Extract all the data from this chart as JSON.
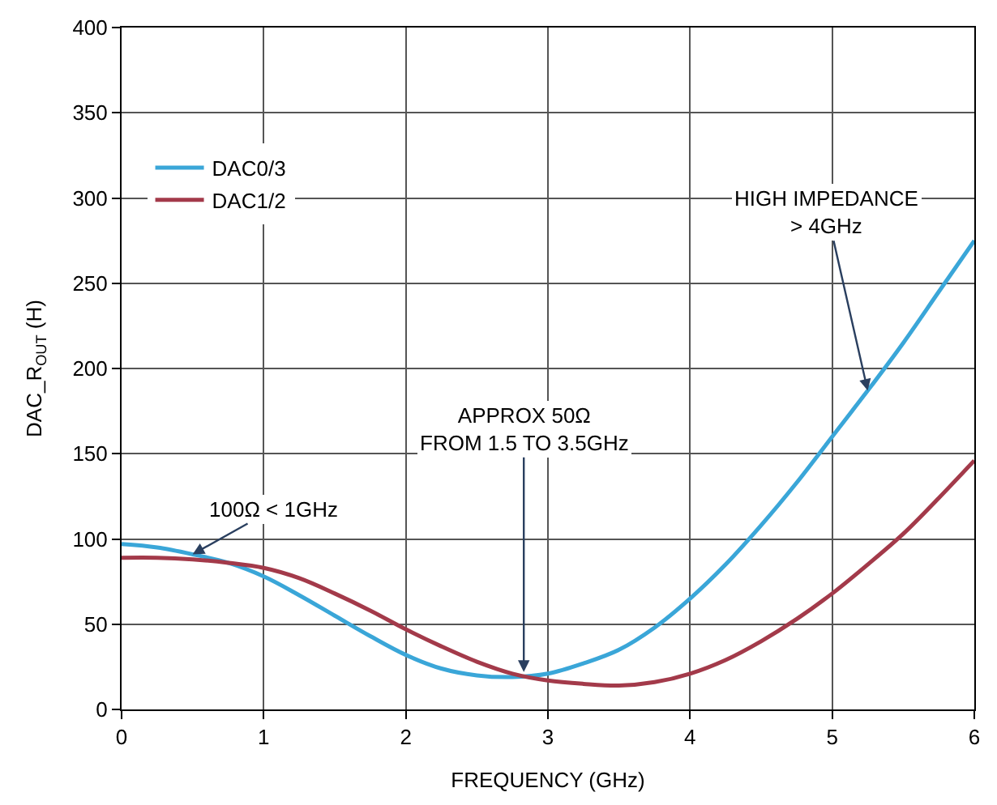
{
  "chart_data": {
    "type": "line",
    "xlabel": "FREQUENCY (GHz)",
    "ylabel": "DAC_R$_{OUT}$ (H)",
    "x": [
      0,
      0.25,
      0.5,
      0.75,
      1,
      1.25,
      1.5,
      1.75,
      2,
      2.25,
      2.5,
      2.75,
      3,
      3.25,
      3.5,
      3.75,
      4,
      4.25,
      4.5,
      4.75,
      5,
      5.25,
      5.5,
      5.75,
      6
    ],
    "series": [
      {
        "name": "DAC0/3",
        "color": "#3aa6d8",
        "values": [
          97,
          95,
          91,
          86,
          78,
          67,
          55,
          43,
          32,
          24,
          20,
          19,
          21,
          27,
          35,
          48,
          65,
          85,
          108,
          133,
          160,
          187,
          215,
          245,
          275
        ]
      },
      {
        "name": "DAC1/2",
        "color": "#a33a4a",
        "values": [
          89,
          89,
          88,
          86,
          83,
          77,
          68,
          58,
          47,
          37,
          28,
          21,
          17,
          15,
          14,
          16,
          21,
          29,
          40,
          53,
          68,
          85,
          103,
          124,
          146
        ]
      }
    ],
    "xlim": [
      0,
      6
    ],
    "xticks": [
      0,
      1,
      2,
      3,
      4,
      5,
      6
    ],
    "ylim": [
      0,
      400
    ],
    "yticks": [
      0,
      50,
      100,
      150,
      200,
      250,
      300,
      350,
      400
    ],
    "grid": true,
    "legend": "top left",
    "marker": "none",
    "line_style": "solid",
    "annotations": [
      {
        "text": "100Ω < 1GHz",
        "x": 0.5,
        "y": 91
      },
      {
        "text": "APPROX 50Ω\nFROM 1.5 TO 3.5GHz",
        "x": 2.83,
        "y": 22
      },
      {
        "text": "HIGH IMPEDANCE\n> 4GHz",
        "x": 5.25,
        "y": 187
      }
    ]
  }
}
